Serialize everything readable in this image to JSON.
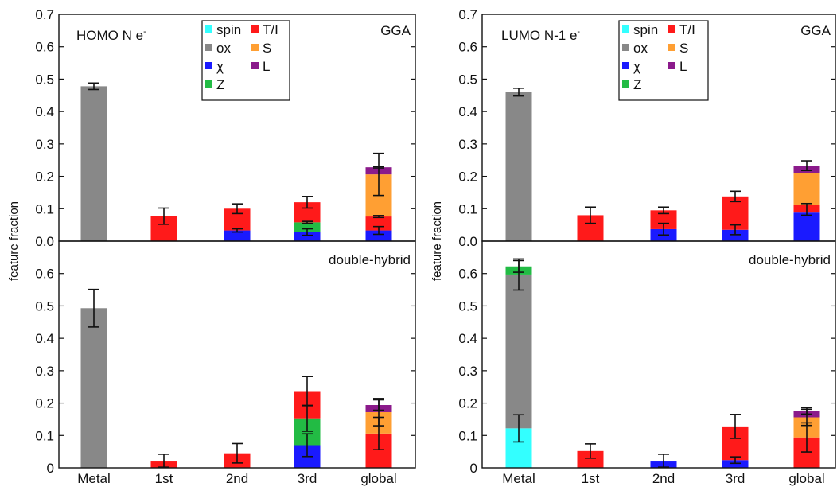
{
  "figure": {
    "ylabel": "feature fraction",
    "colors": {
      "spin": "#33ffff",
      "ox": "#888888",
      "chi": "#1a1aff",
      "Z": "#22bb44",
      "T/I": "#ff1a1a",
      "S": "#ff9f33",
      "L": "#8b1a8b"
    },
    "legend_labels": {
      "spin": "spin",
      "ox": "ox",
      "chi": "χ",
      "Z": "Z",
      "T/I": "T/I",
      "S": "S",
      "L": "L"
    }
  },
  "chart_data": [
    {
      "type": "bar",
      "stacked": true,
      "panel": "left-top",
      "title": "HOMO N e",
      "title_superscript": "-",
      "method": "GGA",
      "categories": [
        "Metal",
        "1st",
        "2nd",
        "3rd",
        "global"
      ],
      "ylim": [
        0,
        0.7
      ],
      "yticks": [
        "0.0",
        "0.1",
        "0.2",
        "0.3",
        "0.4",
        "0.5",
        "0.6",
        "0.7"
      ],
      "series": [
        {
          "key": "ox",
          "values": [
            0.478,
            0,
            0,
            0,
            0
          ]
        },
        {
          "key": "chi",
          "values": [
            0,
            0,
            0.033,
            0.028,
            0.033
          ]
        },
        {
          "key": "Z",
          "values": [
            0,
            0,
            0,
            0.03,
            0
          ]
        },
        {
          "key": "T/I",
          "values": [
            0,
            0.077,
            0.067,
            0.062,
            0.043
          ]
        },
        {
          "key": "S",
          "values": [
            0,
            0,
            0,
            0,
            0.13
          ]
        },
        {
          "key": "L",
          "values": [
            0,
            0,
            0,
            0,
            0.022
          ]
        }
      ],
      "errorbars": [
        {
          "cat": 0,
          "y": 0.478,
          "err": 0.01
        },
        {
          "cat": 1,
          "y": 0.077,
          "err": 0.025
        },
        {
          "cat": 2,
          "y": 0.033,
          "err": 0.005
        },
        {
          "cat": 2,
          "y": 0.1,
          "err": 0.015
        },
        {
          "cat": 3,
          "y": 0.028,
          "err": 0.01
        },
        {
          "cat": 3,
          "y": 0.058,
          "err": 0.003
        },
        {
          "cat": 3,
          "y": 0.12,
          "err": 0.018
        },
        {
          "cat": 4,
          "y": 0.033,
          "err": 0.012
        },
        {
          "cat": 4,
          "y": 0.076,
          "err": 0.003
        },
        {
          "cat": 4,
          "y": 0.206,
          "err": 0.065
        },
        {
          "cat": 4,
          "y": 0.228,
          "err": 0.002
        }
      ]
    },
    {
      "type": "bar",
      "stacked": true,
      "panel": "left-bottom",
      "method": "double-hybrid",
      "categories": [
        "Metal",
        "1st",
        "2nd",
        "3rd",
        "global"
      ],
      "ylim": [
        0,
        0.7
      ],
      "yticks": [
        "0",
        "0.1",
        "0.2",
        "0.3",
        "0.4",
        "0.5",
        "0.6"
      ],
      "series": [
        {
          "key": "ox",
          "values": [
            0.493,
            0,
            0,
            0,
            0
          ]
        },
        {
          "key": "chi",
          "values": [
            0,
            0,
            0,
            0.07,
            0
          ]
        },
        {
          "key": "Z",
          "values": [
            0,
            0,
            0,
            0.083,
            0
          ]
        },
        {
          "key": "T/I",
          "values": [
            0,
            0.022,
            0.045,
            0.084,
            0.106
          ]
        },
        {
          "key": "S",
          "values": [
            0,
            0,
            0,
            0,
            0.066
          ]
        },
        {
          "key": "L",
          "values": [
            0,
            0,
            0,
            0,
            0.022
          ]
        }
      ],
      "errorbars": [
        {
          "cat": 0,
          "y": 0.493,
          "err": 0.058
        },
        {
          "cat": 1,
          "y": 0.022,
          "err": 0.02
        },
        {
          "cat": 2,
          "y": 0.045,
          "err": 0.03
        },
        {
          "cat": 3,
          "y": 0.07,
          "err": 0.035
        },
        {
          "cat": 3,
          "y": 0.153,
          "err": 0.04
        },
        {
          "cat": 3,
          "y": 0.237,
          "err": 0.045
        },
        {
          "cat": 4,
          "y": 0.106,
          "err": 0.05
        },
        {
          "cat": 4,
          "y": 0.172,
          "err": 0.042
        },
        {
          "cat": 4,
          "y": 0.194,
          "err": 0.016
        }
      ]
    },
    {
      "type": "bar",
      "stacked": true,
      "panel": "right-top",
      "title": "LUMO N-1 e",
      "title_superscript": "-",
      "method": "GGA",
      "categories": [
        "Metal",
        "1st",
        "2nd",
        "3rd",
        "global"
      ],
      "ylim": [
        0,
        0.7
      ],
      "yticks": [
        "0.0",
        "0.1",
        "0.2",
        "0.3",
        "0.4",
        "0.5",
        "0.6",
        "0.7"
      ],
      "series": [
        {
          "key": "ox",
          "values": [
            0.46,
            0,
            0,
            0,
            0
          ]
        },
        {
          "key": "chi",
          "values": [
            0,
            0,
            0.037,
            0.035,
            0.088
          ]
        },
        {
          "key": "T/I",
          "values": [
            0,
            0.08,
            0.058,
            0.103,
            0.024
          ]
        },
        {
          "key": "S",
          "values": [
            0,
            0,
            0,
            0,
            0.098
          ]
        },
        {
          "key": "L",
          "values": [
            0,
            0,
            0,
            0,
            0.023
          ]
        }
      ],
      "errorbars": [
        {
          "cat": 0,
          "y": 0.46,
          "err": 0.012
        },
        {
          "cat": 1,
          "y": 0.08,
          "err": 0.025
        },
        {
          "cat": 2,
          "y": 0.037,
          "err": 0.018
        },
        {
          "cat": 2,
          "y": 0.095,
          "err": 0.01
        },
        {
          "cat": 3,
          "y": 0.035,
          "err": 0.015
        },
        {
          "cat": 3,
          "y": 0.138,
          "err": 0.016
        },
        {
          "cat": 4,
          "y": 0.098,
          "err": 0.018
        },
        {
          "cat": 4,
          "y": 0.233,
          "err": 0.015
        }
      ]
    },
    {
      "type": "bar",
      "stacked": true,
      "panel": "right-bottom",
      "method": "double-hybrid",
      "categories": [
        "Metal",
        "1st",
        "2nd",
        "3rd",
        "global"
      ],
      "ylim": [
        0,
        0.7
      ],
      "yticks": [
        "0",
        "0.1",
        "0.2",
        "0.3",
        "0.4",
        "0.5",
        "0.6"
      ],
      "series": [
        {
          "key": "spin",
          "values": [
            0.122,
            0,
            0,
            0,
            0
          ]
        },
        {
          "key": "ox",
          "values": [
            0.475,
            0,
            0,
            0,
            0
          ]
        },
        {
          "key": "chi",
          "values": [
            0,
            0,
            0.022,
            0.024,
            0
          ]
        },
        {
          "key": "Z",
          "values": [
            0.025,
            0,
            0,
            0,
            0
          ]
        },
        {
          "key": "T/I",
          "values": [
            0,
            0.052,
            0,
            0.104,
            0.094
          ]
        },
        {
          "key": "S",
          "values": [
            0,
            0,
            0,
            0,
            0.062
          ]
        },
        {
          "key": "L",
          "values": [
            0,
            0,
            0,
            0,
            0.02
          ]
        }
      ],
      "errorbars": [
        {
          "cat": 0,
          "y": 0.122,
          "err": 0.042
        },
        {
          "cat": 0,
          "y": 0.597,
          "err": 0.048
        },
        {
          "cat": 0,
          "y": 0.622,
          "err": 0.018
        },
        {
          "cat": 1,
          "y": 0.052,
          "err": 0.022
        },
        {
          "cat": 2,
          "y": 0.022,
          "err": 0.02
        },
        {
          "cat": 3,
          "y": 0.024,
          "err": 0.01
        },
        {
          "cat": 3,
          "y": 0.128,
          "err": 0.037
        },
        {
          "cat": 4,
          "y": 0.094,
          "err": 0.045
        },
        {
          "cat": 4,
          "y": 0.156,
          "err": 0.025
        },
        {
          "cat": 4,
          "y": 0.176,
          "err": 0.01
        }
      ]
    }
  ]
}
